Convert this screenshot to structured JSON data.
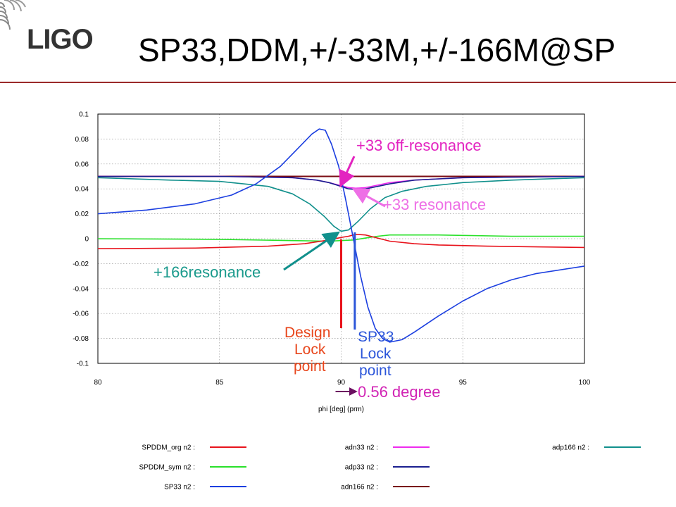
{
  "slide": {
    "logo_text": "LIGO",
    "title": "SP33,DDM,+/-33M,+/-166M@SP"
  },
  "annotations": {
    "off_resonance": "+33 off-resonance",
    "resonance33": "+33 resonance",
    "resonance166": "+166resonance",
    "design_lock": [
      "Design",
      "Lock",
      "point"
    ],
    "sp33_lock": [
      "SP33",
      "Lock",
      "point"
    ],
    "delta": "0.56 degree"
  },
  "colors": {
    "SPDDM_org": "#e8131c",
    "SPDDM_sym": "#29e02a",
    "SP33": "#1c3fe0",
    "adn33": "#ee2bee",
    "adp33": "#1a1f8f",
    "adn166": "#7a0b12",
    "adp166": "#11908c",
    "design_text": "#e8461c",
    "sp33_text": "#2b55d9",
    "off_text": "#e324c0",
    "res33_text": "#ee6fe6",
    "res166_text": "#1a9a8c",
    "delta_text": "#d123b4",
    "delta_arrow": "#6b1060"
  },
  "chart_data": {
    "type": "line",
    "xlabel": "phi [deg] (prm)",
    "ylabel": "",
    "xlim": [
      80,
      100
    ],
    "ylim": [
      -0.1,
      0.1
    ],
    "xticks": [
      "80",
      "85",
      "90",
      "95",
      "100"
    ],
    "yticks": [
      "0.1",
      "0.08",
      "0.06",
      "0.04",
      "0.02",
      "0",
      "-0.02",
      "-0.04",
      "-0.06",
      "-0.08",
      "-0.1"
    ],
    "grid": true,
    "legend_position": "bottom",
    "series": [
      {
        "name": "SPDDM_org n2 :",
        "key": "SPDDM_org",
        "x": [
          80,
          84,
          87,
          88.5,
          89.5,
          90,
          90.3,
          90.6,
          91,
          91.5,
          92,
          93,
          94,
          96,
          100
        ],
        "y": [
          -0.008,
          -0.0075,
          -0.006,
          -0.004,
          -0.001,
          0.001,
          0.002,
          0.0035,
          0.003,
          0.0005,
          -0.002,
          -0.004,
          -0.005,
          -0.006,
          -0.007
        ]
      },
      {
        "name": "SPDDM_sym n2 :",
        "key": "SPDDM_sym",
        "x": [
          80,
          85,
          88,
          89.5,
          90.5,
          91,
          91.5,
          92,
          94,
          97,
          100
        ],
        "y": [
          0.0,
          -0.0005,
          -0.0015,
          -0.002,
          -0.001,
          0.0005,
          0.002,
          0.003,
          0.003,
          0.002,
          0.002
        ]
      },
      {
        "name": "SP33 n2 :",
        "key": "SP33",
        "x": [
          80,
          82,
          84,
          85.5,
          86.5,
          87.5,
          88.2,
          88.8,
          89.1,
          89.35,
          89.6,
          89.9,
          90.2,
          90.5,
          90.8,
          91.1,
          91.4,
          91.7,
          92,
          92.5,
          93,
          94,
          95,
          96,
          97,
          98,
          100
        ],
        "y": [
          0.02,
          0.023,
          0.028,
          0.035,
          0.044,
          0.058,
          0.072,
          0.084,
          0.088,
          0.087,
          0.076,
          0.058,
          0.03,
          0.0,
          -0.03,
          -0.055,
          -0.072,
          -0.08,
          -0.083,
          -0.081,
          -0.075,
          -0.062,
          -0.05,
          -0.04,
          -0.033,
          -0.028,
          -0.022
        ]
      },
      {
        "name": "adn33 n2 :",
        "key": "adn33",
        "x": [
          80,
          85,
          88,
          89,
          89.5,
          90,
          90.3,
          90.6,
          91,
          91.5,
          92,
          93,
          95,
          100
        ],
        "y": [
          0.05,
          0.05,
          0.049,
          0.047,
          0.045,
          0.0425,
          0.041,
          0.0405,
          0.041,
          0.043,
          0.045,
          0.047,
          0.049,
          0.05
        ]
      },
      {
        "name": "adp33 n2 :",
        "key": "adp33",
        "x": [
          80,
          85,
          88,
          89,
          89.5,
          90,
          90.3,
          90.6,
          91,
          91.5,
          92,
          93,
          95,
          100
        ],
        "y": [
          0.05,
          0.05,
          0.049,
          0.047,
          0.045,
          0.042,
          0.04,
          0.0395,
          0.04,
          0.042,
          0.044,
          0.047,
          0.049,
          0.05
        ]
      },
      {
        "name": "adn166 n2 :",
        "key": "adn166",
        "x": [
          80,
          85,
          90,
          95,
          100
        ],
        "y": [
          0.05,
          0.05,
          0.05,
          0.05,
          0.05
        ]
      },
      {
        "name": "adp166 n2 :",
        "key": "adp166",
        "x": [
          80,
          83,
          85,
          87,
          88,
          88.7,
          89.3,
          89.7,
          90,
          90.3,
          90.7,
          91.2,
          91.8,
          92.5,
          93.5,
          95,
          97,
          100
        ],
        "y": [
          0.049,
          0.047,
          0.046,
          0.042,
          0.036,
          0.028,
          0.018,
          0.01,
          0.006,
          0.007,
          0.014,
          0.024,
          0.033,
          0.038,
          0.042,
          0.045,
          0.047,
          0.049
        ]
      }
    ]
  }
}
